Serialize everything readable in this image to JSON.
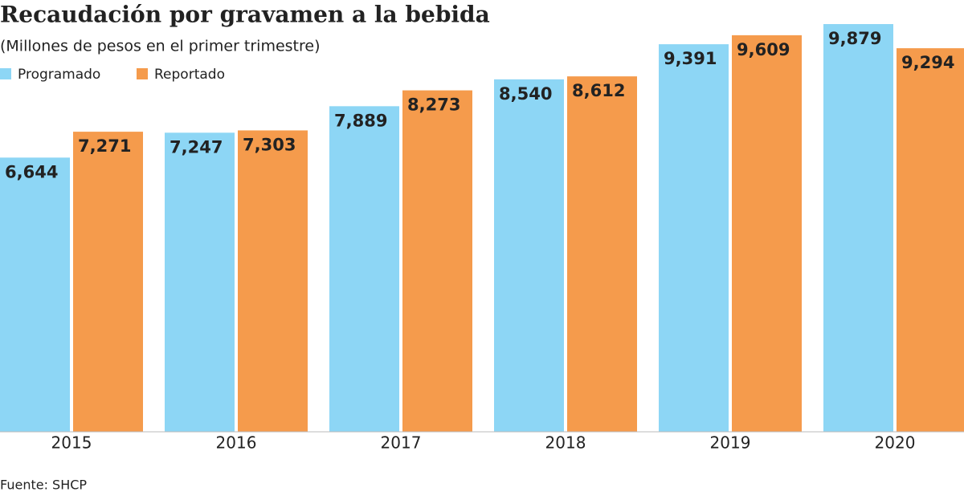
{
  "chart_data": {
    "type": "bar",
    "title": "Recaudación por gravamen a la bebida",
    "subtitle": "(Millones de pesos en el primer trimestre)",
    "source": "Fuente: SHCP",
    "categories": [
      "2015",
      "2016",
      "2017",
      "2018",
      "2019",
      "2020"
    ],
    "series": [
      {
        "name": "Programado",
        "color": "#8dd6f5",
        "values": [
          6644,
          7247,
          7889,
          8540,
          9391,
          9879
        ],
        "value_labels": [
          "6,644",
          "7,247",
          "7,889",
          "8,540",
          "9,391",
          "9,879"
        ]
      },
      {
        "name": "Reportado",
        "color": "#f59b4c",
        "values": [
          7271,
          7303,
          8273,
          8612,
          9609,
          9294
        ],
        "value_labels": [
          "7,271",
          "7,303",
          "8,273",
          "8,612",
          "9,609",
          "9,294"
        ]
      }
    ]
  }
}
